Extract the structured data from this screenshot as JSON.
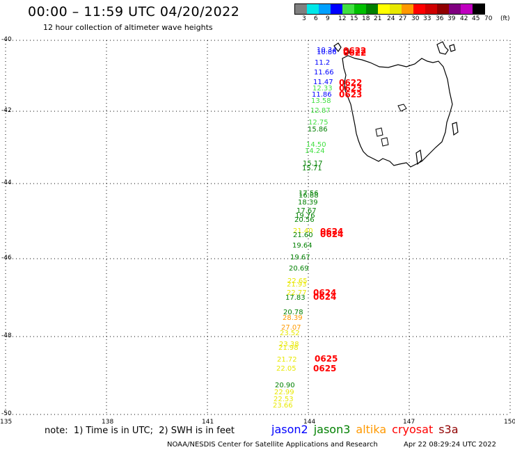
{
  "title": "00:00 – 11:59 UTC 04/20/2022",
  "subtitle": "12 hour collection of altimeter wave heights",
  "color_scale": {
    "unit": "(ft)",
    "labels": [
      "3",
      "6",
      "9",
      "12",
      "15",
      "18",
      "21",
      "24",
      "27",
      "30",
      "33",
      "36",
      "39",
      "42",
      "45",
      "70"
    ],
    "colors": [
      "#808080",
      "#00e8e8",
      "#00a0ff",
      "#0000ff",
      "#40e040",
      "#00c000",
      "#008000",
      "#ffff00",
      "#e8e800",
      "#ff9900",
      "#ff0000",
      "#d00000",
      "#900000",
      "#800080",
      "#c000c0",
      "#000000"
    ]
  },
  "map": {
    "lat_labels": [
      "-40",
      "-42",
      "-44",
      "-46",
      "-48",
      "-50"
    ],
    "lon_labels": [
      "135",
      "138",
      "141",
      "144",
      "147",
      "150"
    ]
  },
  "wave_heights": [
    {
      "text": "10.34",
      "color": "#0000ff"
    },
    {
      "text": "10.86",
      "color": "#0000ff"
    },
    {
      "text": "11.2",
      "color": "#0000ff"
    },
    {
      "text": "11.66",
      "color": "#0000ff"
    },
    {
      "text": "11.47",
      "color": "#0000ff"
    },
    {
      "text": "12.33",
      "color": "#40e040"
    },
    {
      "text": "11.86",
      "color": "#0000ff"
    },
    {
      "text": "13.58",
      "color": "#40e040"
    },
    {
      "text": "12.87",
      "color": "#40e040"
    },
    {
      "text": "12.75",
      "color": "#40e040"
    },
    {
      "text": "15.86",
      "color": "#008000"
    },
    {
      "text": "14.50",
      "color": "#40e040"
    },
    {
      "text": "14.24",
      "color": "#40e040"
    },
    {
      "text": "15.17",
      "color": "#008000"
    },
    {
      "text": "15.71",
      "color": "#008000"
    },
    {
      "text": "17.56",
      "color": "#008000"
    },
    {
      "text": "16.88",
      "color": "#008000"
    },
    {
      "text": "18.39",
      "color": "#008000"
    },
    {
      "text": "17.67",
      "color": "#008000"
    },
    {
      "text": "19.76",
      "color": "#008000"
    },
    {
      "text": "20.56",
      "color": "#008000"
    },
    {
      "text": "21.40",
      "color": "#e8e800"
    },
    {
      "text": "21.60",
      "color": "#008000"
    },
    {
      "text": "19.64",
      "color": "#008000"
    },
    {
      "text": "19.67",
      "color": "#008000"
    },
    {
      "text": "20.69",
      "color": "#008000"
    },
    {
      "text": "22.65",
      "color": "#e8e800"
    },
    {
      "text": "21.93",
      "color": "#e8e800"
    },
    {
      "text": "22.77",
      "color": "#e8e800"
    },
    {
      "text": "17.83",
      "color": "#008000"
    },
    {
      "text": "20.78",
      "color": "#008000"
    },
    {
      "text": "28.39",
      "color": "#ff9900"
    },
    {
      "text": "27.07",
      "color": "#ff9900"
    },
    {
      "text": "23.52",
      "color": "#e8e800"
    },
    {
      "text": "23.38",
      "color": "#e8e800"
    },
    {
      "text": "21.98",
      "color": "#e8e800"
    },
    {
      "text": "21.72",
      "color": "#e8e800"
    },
    {
      "text": "22.05",
      "color": "#e8e800"
    },
    {
      "text": "20.90",
      "color": "#008000"
    },
    {
      "text": "22.99",
      "color": "#e8e800"
    },
    {
      "text": "22.53",
      "color": "#e8e800"
    },
    {
      "text": "23.66",
      "color": "#e8e800"
    }
  ],
  "time_labels": [
    "0622",
    "0622",
    "0622",
    "0623",
    "0623",
    "0624",
    "0624",
    "0624",
    "0624",
    "0625",
    "0625"
  ],
  "note": "note:  1) Time is in UTC;  2) SWH is in feet",
  "legend": [
    {
      "label": "jason2",
      "color": "#0000ff"
    },
    {
      "label": "jason3",
      "color": "#008000"
    },
    {
      "label": "altika",
      "color": "#ff9900"
    },
    {
      "label": "cryosat",
      "color": "#ff0000"
    },
    {
      "label": "s3a",
      "color": "#900000"
    }
  ],
  "credit": "NOAA/NESDIS Center for Satellite Applications and Research",
  "timestamp": "Apr 22 08:29:24 UTC 2022"
}
